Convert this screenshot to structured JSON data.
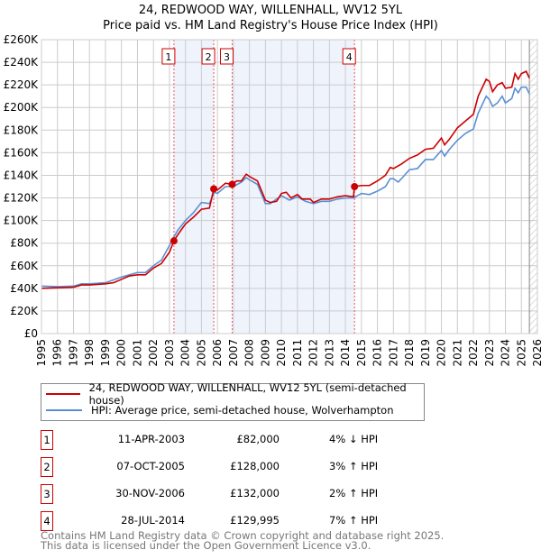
{
  "chart_data": {
    "type": "line",
    "title": "24, REDWOOD WAY, WILLENHALL, WV12 5YL",
    "subtitle": "Price paid vs. HM Land Registry's House Price Index (HPI)",
    "xlim": [
      1995,
      2026
    ],
    "ylim": [
      0,
      260000
    ],
    "yticks": [
      0,
      20000,
      40000,
      60000,
      80000,
      100000,
      120000,
      140000,
      160000,
      180000,
      200000,
      220000,
      240000,
      260000
    ],
    "ytick_labels": [
      "£0",
      "£20K",
      "£40K",
      "£60K",
      "£80K",
      "£100K",
      "£120K",
      "£140K",
      "£160K",
      "£180K",
      "£200K",
      "£220K",
      "£240K",
      "£260K"
    ],
    "xticks": [
      1995,
      1996,
      1997,
      1998,
      1999,
      2000,
      2001,
      2002,
      2003,
      2004,
      2005,
      2006,
      2007,
      2008,
      2009,
      2010,
      2011,
      2012,
      2013,
      2014,
      2015,
      2016,
      2017,
      2018,
      2019,
      2020,
      2021,
      2022,
      2023,
      2024,
      2025,
      2026
    ],
    "grid": true,
    "series": [
      {
        "name": "24, REDWOOD WAY, WILLENHALL, WV12 5YL (semi-detached house)",
        "color": "#cc0000",
        "points": [
          [
            1995,
            40
          ],
          [
            1996,
            40.5
          ],
          [
            1997,
            41
          ],
          [
            1997.5,
            43
          ],
          [
            1998,
            43
          ],
          [
            1999,
            44
          ],
          [
            1999.5,
            45
          ],
          [
            2000,
            48
          ],
          [
            2000.5,
            51
          ],
          [
            2001,
            52
          ],
          [
            2001.5,
            52
          ],
          [
            2002,
            58
          ],
          [
            2002.5,
            62
          ],
          [
            2003,
            72
          ],
          [
            2003.28,
            82
          ],
          [
            2003.5,
            87
          ],
          [
            2004,
            97
          ],
          [
            2004.5,
            103
          ],
          [
            2005,
            110
          ],
          [
            2005.5,
            111
          ],
          [
            2005.77,
            128
          ],
          [
            2006,
            127
          ],
          [
            2006.5,
            133
          ],
          [
            2006.92,
            132
          ],
          [
            2007.2,
            135
          ],
          [
            2007.5,
            135
          ],
          [
            2007.8,
            141
          ],
          [
            2008,
            139
          ],
          [
            2008.5,
            135
          ],
          [
            2009,
            118
          ],
          [
            2009.3,
            116
          ],
          [
            2009.7,
            117
          ],
          [
            2010,
            124
          ],
          [
            2010.3,
            125
          ],
          [
            2010.6,
            120
          ],
          [
            2011,
            123
          ],
          [
            2011.3,
            119
          ],
          [
            2011.8,
            119
          ],
          [
            2012,
            116
          ],
          [
            2012.5,
            119
          ],
          [
            2013,
            119
          ],
          [
            2013.5,
            121
          ],
          [
            2014,
            122
          ],
          [
            2014.5,
            121
          ],
          [
            2014.57,
            130
          ],
          [
            2015,
            131
          ],
          [
            2015.5,
            131
          ],
          [
            2016,
            135
          ],
          [
            2016.5,
            140
          ],
          [
            2016.8,
            147
          ],
          [
            2017,
            146
          ],
          [
            2017.5,
            150
          ],
          [
            2018,
            155
          ],
          [
            2018.5,
            158
          ],
          [
            2019,
            163
          ],
          [
            2019.5,
            164
          ],
          [
            2020,
            173
          ],
          [
            2020.2,
            167
          ],
          [
            2020.5,
            172
          ],
          [
            2021,
            182
          ],
          [
            2021.5,
            188
          ],
          [
            2022,
            194
          ],
          [
            2022.3,
            210
          ],
          [
            2022.8,
            225
          ],
          [
            2023,
            223
          ],
          [
            2023.2,
            214
          ],
          [
            2023.5,
            220
          ],
          [
            2023.8,
            222
          ],
          [
            2024,
            217
          ],
          [
            2024.4,
            218
          ],
          [
            2024.6,
            230
          ],
          [
            2024.8,
            225
          ],
          [
            2025,
            230
          ],
          [
            2025.3,
            232
          ],
          [
            2025.5,
            226
          ]
        ]
      },
      {
        "name": "HPI: Average price, semi-detached house, Wolverhampton",
        "color": "#5b8fd4",
        "points": [
          [
            1995,
            42
          ],
          [
            1996,
            41.5
          ],
          [
            1997,
            42
          ],
          [
            1997.5,
            44
          ],
          [
            1998,
            44
          ],
          [
            1999,
            45
          ],
          [
            2000,
            50
          ],
          [
            2001,
            54
          ],
          [
            2001.5,
            54
          ],
          [
            2002,
            60
          ],
          [
            2002.5,
            65
          ],
          [
            2003,
            78
          ],
          [
            2003.3,
            86
          ],
          [
            2003.5,
            91
          ],
          [
            2004,
            100
          ],
          [
            2004.5,
            107
          ],
          [
            2005,
            116
          ],
          [
            2005.5,
            115
          ],
          [
            2005.8,
            125
          ],
          [
            2006,
            124
          ],
          [
            2006.5,
            130
          ],
          [
            2007,
            130
          ],
          [
            2007.5,
            134
          ],
          [
            2007.8,
            138
          ],
          [
            2008,
            136
          ],
          [
            2008.5,
            132
          ],
          [
            2009,
            115
          ],
          [
            2009.3,
            115
          ],
          [
            2010,
            122
          ],
          [
            2010.5,
            118
          ],
          [
            2011,
            121
          ],
          [
            2011.5,
            117
          ],
          [
            2012,
            115
          ],
          [
            2012.5,
            117
          ],
          [
            2013,
            117
          ],
          [
            2013.5,
            119
          ],
          [
            2014,
            120
          ],
          [
            2014.5,
            120
          ],
          [
            2015,
            124
          ],
          [
            2015.5,
            123
          ],
          [
            2016,
            126
          ],
          [
            2016.5,
            130
          ],
          [
            2016.8,
            137
          ],
          [
            2017,
            137
          ],
          [
            2017.3,
            134
          ],
          [
            2017.5,
            137
          ],
          [
            2018,
            145
          ],
          [
            2018.5,
            146
          ],
          [
            2019,
            154
          ],
          [
            2019.5,
            154
          ],
          [
            2020,
            162
          ],
          [
            2020.2,
            157
          ],
          [
            2020.5,
            163
          ],
          [
            2021,
            171
          ],
          [
            2021.5,
            177
          ],
          [
            2022,
            181
          ],
          [
            2022.3,
            195
          ],
          [
            2022.8,
            210
          ],
          [
            2023,
            207
          ],
          [
            2023.2,
            201
          ],
          [
            2023.5,
            204
          ],
          [
            2023.8,
            210
          ],
          [
            2024,
            204
          ],
          [
            2024.4,
            208
          ],
          [
            2024.6,
            217
          ],
          [
            2024.8,
            213
          ],
          [
            2025,
            218
          ],
          [
            2025.3,
            218
          ],
          [
            2025.5,
            212
          ]
        ]
      }
    ],
    "sales": [
      {
        "num": "1",
        "x": 2003.28,
        "value": 82000,
        "date": "11-APR-2003",
        "price": "£82,000",
        "hpi": "4% ↓ HPI"
      },
      {
        "num": "2",
        "x": 2005.77,
        "value": 128000,
        "date": "07-OCT-2005",
        "price": "£128,000",
        "hpi": "3% ↑ HPI"
      },
      {
        "num": "3",
        "x": 2006.92,
        "value": 132000,
        "date": "30-NOV-2006",
        "price": "£132,000",
        "hpi": "2% ↑ HPI"
      },
      {
        "num": "4",
        "x": 2014.57,
        "value": 129995,
        "date": "28-JUL-2014",
        "price": "£129,995",
        "hpi": "7% ↑ HPI"
      }
    ],
    "shaded_ranges": [
      [
        2003.28,
        2005.77
      ],
      [
        2006.92,
        2014.57
      ]
    ],
    "forecast_start": 2025.5
  },
  "footer": {
    "line1": "Contains HM Land Registry data © Crown copyright and database right 2025.",
    "line2": "This data is licensed under the Open Government Licence v3.0."
  }
}
